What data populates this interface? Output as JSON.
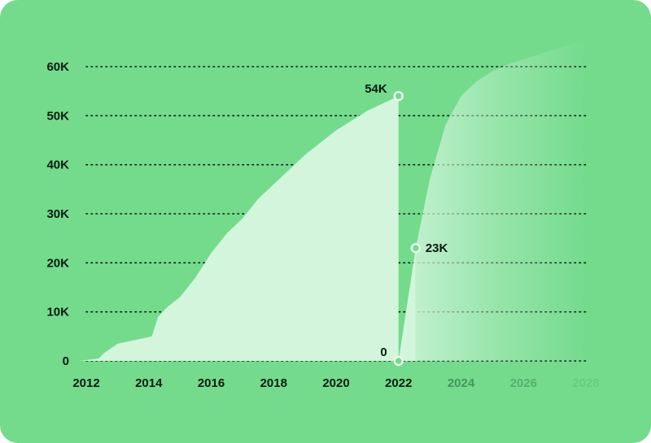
{
  "chart_data": {
    "type": "area",
    "title": "",
    "xlabel": "",
    "ylabel": "",
    "y_ticks": [
      "0",
      "10K",
      "20K",
      "30K",
      "40K",
      "50K",
      "60K"
    ],
    "x_ticks": [
      "2012",
      "2014",
      "2016",
      "2018",
      "2020",
      "2022",
      "2024",
      "2026",
      "2028"
    ],
    "ylim": [
      0,
      60000
    ],
    "xlim": [
      2012,
      2028
    ],
    "grid": "horizontal dotted",
    "series": [
      {
        "x": [
          2011.8,
          2012.4,
          2012.55,
          2013.0,
          2014.1,
          2014.3,
          2014.6,
          2015.0,
          2015.5,
          2016.0,
          2016.5,
          2017.0,
          2017.5,
          2018.0,
          2018.5,
          2019.0,
          2019.5,
          2020.0,
          2020.5,
          2021.0,
          2021.5,
          2022.0
        ],
        "values": [
          0,
          500,
          1500,
          3500,
          5000,
          9000,
          11000,
          13000,
          17000,
          22000,
          26000,
          29000,
          33000,
          36000,
          39000,
          42000,
          44500,
          47000,
          49000,
          51000,
          52500,
          54000
        ]
      },
      {
        "x": [
          2022.0,
          2022.55
        ],
        "values": [
          0,
          23000
        ]
      },
      {
        "x": [
          2022.55,
          2023.0,
          2023.5,
          2024.0,
          2024.5,
          2025.0,
          2025.5,
          2026.0,
          2026.5,
          2027.0,
          2027.5,
          2028.0
        ],
        "values": [
          23000,
          37000,
          48000,
          54000,
          57000,
          59000,
          60500,
          61500,
          62500,
          63500,
          64500,
          65500
        ]
      }
    ],
    "data_labels": [
      {
        "x": 2022.0,
        "y": 54000,
        "text": "54K"
      },
      {
        "x": 2022.0,
        "y": 0,
        "text": "0"
      },
      {
        "x": 2022.55,
        "y": 23000,
        "text": "23K"
      }
    ],
    "colors": {
      "background": "#74db8d",
      "area": "#d3f5dc",
      "grid": "#0b1a10",
      "text": "#0b1a10"
    }
  }
}
